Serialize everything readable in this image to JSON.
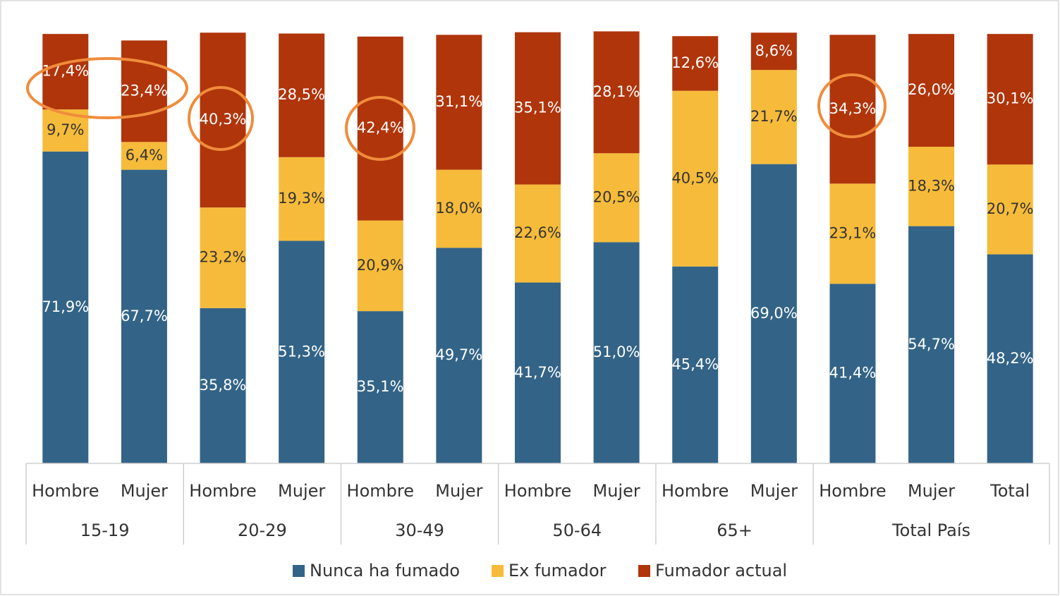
{
  "chart_data": {
    "type": "stacked-bar",
    "categories": [
      "Hombre",
      "Mujer",
      "Hombre",
      "Mujer",
      "Hombre",
      "Mujer",
      "Hombre",
      "Mujer",
      "Hombre",
      "Mujer",
      "Hombre",
      "Mujer",
      "Total"
    ],
    "groups": [
      {
        "name": "15-19",
        "size": 2
      },
      {
        "name": "20-29",
        "size": 2
      },
      {
        "name": "30-49",
        "size": 2
      },
      {
        "name": "50-64",
        "size": 2
      },
      {
        "name": "65+",
        "size": 2
      },
      {
        "name": "Total País",
        "size": 3
      }
    ],
    "ylim": [
      0,
      100
    ],
    "series": [
      {
        "name": "Nunca ha fumado",
        "color": "#336487",
        "label_color": "#ffffff",
        "values": [
          71.9,
          67.7,
          35.8,
          51.3,
          35.1,
          49.7,
          41.7,
          51.0,
          45.4,
          69.0,
          41.4,
          54.7,
          48.2
        ],
        "value_labels": [
          "71,9%",
          "67,7%",
          "35,8%",
          "51,3%",
          "35,1%",
          "49,7%",
          "41,7%",
          "51,0%",
          "45,4%",
          "69,0%",
          "41,4%",
          "54,7%",
          "48,2%"
        ]
      },
      {
        "name": "Ex fumador",
        "color": "#F6BB3A",
        "label_color": "#333333",
        "values": [
          9.7,
          6.4,
          23.2,
          19.3,
          20.9,
          18.0,
          22.6,
          20.5,
          40.5,
          21.7,
          23.1,
          18.3,
          20.7
        ],
        "value_labels": [
          "9,7%",
          "6,4%",
          "23,2%",
          "19,3%",
          "20,9%",
          "18,0%",
          "22,6%",
          "20,5%",
          "40,5%",
          "21,7%",
          "23,1%",
          "18,3%",
          "20,7%"
        ]
      },
      {
        "name": "Fumador actual",
        "color": "#B0350B",
        "label_color": "#ffffff",
        "values": [
          17.4,
          23.4,
          40.3,
          28.5,
          42.4,
          31.1,
          35.1,
          28.1,
          12.6,
          8.6,
          34.3,
          26.0,
          30.1
        ],
        "value_labels": [
          "17,4%",
          "23,4%",
          "40,3%",
          "28,5%",
          "42,4%",
          "31,1%",
          "35,1%",
          "28,1%",
          "12,6%",
          "8,6%",
          "34,3%",
          "26,0%",
          "30,1%"
        ]
      }
    ]
  }
}
